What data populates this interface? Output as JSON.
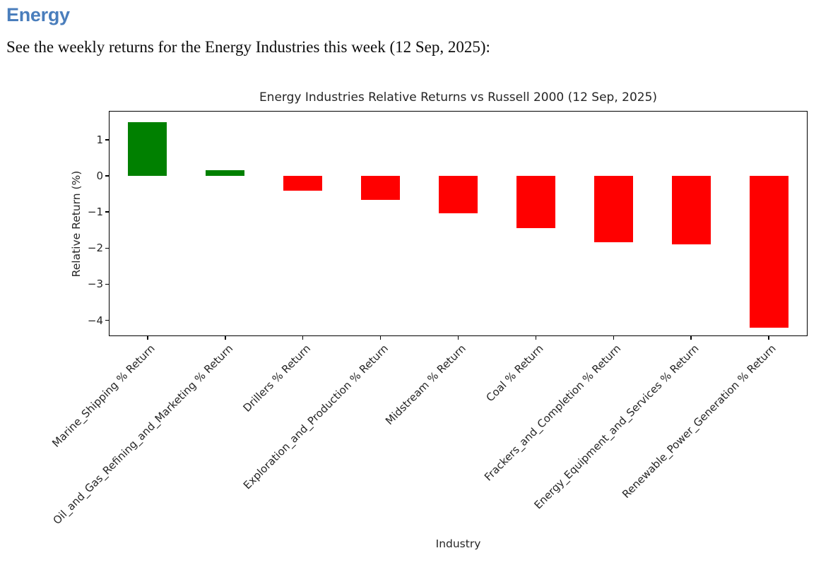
{
  "page": {
    "heading": "Energy",
    "intro": "See the weekly returns for the Energy Industries this week (12 Sep, 2025):"
  },
  "colors": {
    "heading_blue": "#4a7ebc",
    "positive_green": "#008000",
    "negative_red": "#ff0000",
    "axis_black": "#000000"
  },
  "chart_data": {
    "type": "bar",
    "title": "Energy Industries Relative Returns vs Russell 2000 (12 Sep, 2025)",
    "xlabel": "Industry",
    "ylabel": "Relative Return (%)",
    "categories": [
      "Marine_Shipping % Return",
      "Oil_and_Gas_Refining_and_Marketing % Return",
      "Drillers % Return",
      "Exploration_and_Production % Return",
      "Midstream % Return",
      "Coal % Return",
      "Frackers_and_Completion % Return",
      "Energy_Equipment_and_Services % Return",
      "Renewable_Power_Generation % Return"
    ],
    "values": [
      1.48,
      0.15,
      -0.42,
      -0.66,
      -1.04,
      -1.45,
      -1.84,
      -1.89,
      -4.2
    ],
    "yticks": [
      1,
      0,
      -1,
      -2,
      -3,
      -4
    ],
    "ylim": [
      -4.44,
      1.8
    ],
    "positive_color": "#008000",
    "negative_color": "#ff0000",
    "bar_width_fraction": 0.5,
    "grid": false,
    "legend": "none"
  }
}
